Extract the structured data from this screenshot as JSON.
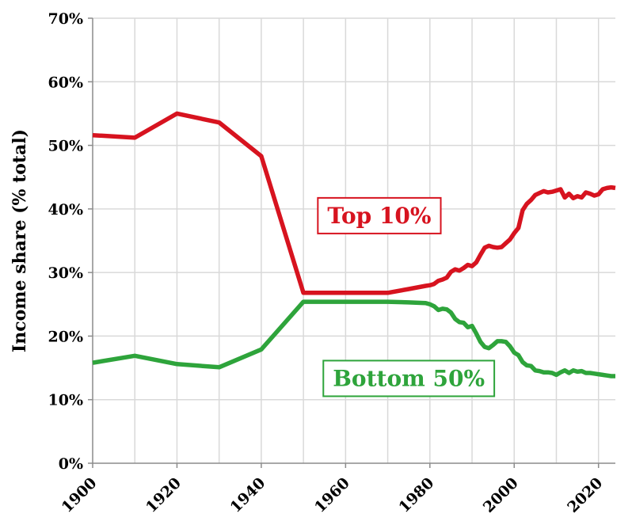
{
  "chart_data": {
    "type": "line",
    "title": "",
    "xlabel": "",
    "ylabel": "Income share (% total)",
    "xlim": [
      1900,
      2024
    ],
    "ylim": [
      0,
      70
    ],
    "x_ticks": [
      "1900",
      "1920",
      "1940",
      "1960",
      "1980",
      "2000",
      "2020"
    ],
    "y_ticks": [
      "0%",
      "10%",
      "20%",
      "30%",
      "40%",
      "50%",
      "60%",
      "70%"
    ],
    "grid": true,
    "legend": "inline labels",
    "series": [
      {
        "name": "Top 10%",
        "color": "#d7131f",
        "points": [
          [
            1900,
            51.6
          ],
          [
            1910,
            51.2
          ],
          [
            1920,
            55.0
          ],
          [
            1930,
            53.6
          ],
          [
            1940,
            48.3
          ],
          [
            1950,
            26.8
          ],
          [
            1960,
            26.8
          ],
          [
            1970,
            26.8
          ],
          [
            1975,
            27.4
          ],
          [
            1979,
            27.9
          ],
          [
            1980,
            28.0
          ],
          [
            1981,
            28.2
          ],
          [
            1982,
            28.7
          ],
          [
            1983,
            28.9
          ],
          [
            1984,
            29.2
          ],
          [
            1985,
            30.1
          ],
          [
            1986,
            30.5
          ],
          [
            1987,
            30.3
          ],
          [
            1988,
            30.7
          ],
          [
            1989,
            31.2
          ],
          [
            1990,
            31.0
          ],
          [
            1991,
            31.6
          ],
          [
            1992,
            32.8
          ],
          [
            1993,
            33.9
          ],
          [
            1994,
            34.2
          ],
          [
            1995,
            34.0
          ],
          [
            1996,
            33.9
          ],
          [
            1997,
            34.0
          ],
          [
            1998,
            34.6
          ],
          [
            1999,
            35.2
          ],
          [
            2000,
            36.2
          ],
          [
            2001,
            37.0
          ],
          [
            2002,
            39.8
          ],
          [
            2003,
            40.8
          ],
          [
            2004,
            41.4
          ],
          [
            2005,
            42.2
          ],
          [
            2006,
            42.5
          ],
          [
            2007,
            42.8
          ],
          [
            2008,
            42.6
          ],
          [
            2009,
            42.7
          ],
          [
            2010,
            42.9
          ],
          [
            2011,
            43.1
          ],
          [
            2012,
            41.8
          ],
          [
            2013,
            42.4
          ],
          [
            2014,
            41.7
          ],
          [
            2015,
            42.0
          ],
          [
            2016,
            41.8
          ],
          [
            2017,
            42.6
          ],
          [
            2018,
            42.4
          ],
          [
            2019,
            42.1
          ],
          [
            2020,
            42.3
          ],
          [
            2021,
            43.1
          ],
          [
            2022,
            43.3
          ],
          [
            2023,
            43.4
          ],
          [
            2024,
            43.3
          ]
        ]
      },
      {
        "name": "Bottom 50%",
        "color": "#2ea43b",
        "points": [
          [
            1900,
            15.8
          ],
          [
            1910,
            16.9
          ],
          [
            1920,
            15.6
          ],
          [
            1930,
            15.1
          ],
          [
            1940,
            17.9
          ],
          [
            1950,
            25.4
          ],
          [
            1960,
            25.4
          ],
          [
            1970,
            25.4
          ],
          [
            1975,
            25.3
          ],
          [
            1979,
            25.2
          ],
          [
            1980,
            25.0
          ],
          [
            1981,
            24.7
          ],
          [
            1982,
            24.1
          ],
          [
            1983,
            24.3
          ],
          [
            1984,
            24.2
          ],
          [
            1985,
            23.7
          ],
          [
            1986,
            22.7
          ],
          [
            1987,
            22.2
          ],
          [
            1988,
            22.1
          ],
          [
            1989,
            21.4
          ],
          [
            1990,
            21.6
          ],
          [
            1991,
            20.4
          ],
          [
            1992,
            19.1
          ],
          [
            1993,
            18.3
          ],
          [
            1994,
            18.1
          ],
          [
            1995,
            18.6
          ],
          [
            1996,
            19.2
          ],
          [
            1997,
            19.2
          ],
          [
            1998,
            19.1
          ],
          [
            1999,
            18.4
          ],
          [
            2000,
            17.4
          ],
          [
            2001,
            17.0
          ],
          [
            2002,
            15.9
          ],
          [
            2003,
            15.4
          ],
          [
            2004,
            15.3
          ],
          [
            2005,
            14.6
          ],
          [
            2006,
            14.5
          ],
          [
            2007,
            14.3
          ],
          [
            2008,
            14.3
          ],
          [
            2009,
            14.2
          ],
          [
            2010,
            13.9
          ],
          [
            2011,
            14.3
          ],
          [
            2012,
            14.6
          ],
          [
            2013,
            14.2
          ],
          [
            2014,
            14.6
          ],
          [
            2015,
            14.4
          ],
          [
            2016,
            14.5
          ],
          [
            2017,
            14.2
          ],
          [
            2018,
            14.2
          ],
          [
            2019,
            14.1
          ],
          [
            2020,
            14.0
          ],
          [
            2021,
            13.9
          ],
          [
            2022,
            13.8
          ],
          [
            2023,
            13.7
          ],
          [
            2024,
            13.7
          ]
        ]
      }
    ],
    "labels": [
      {
        "series": "Top 10%",
        "text": "Top 10%",
        "x": 1968,
        "y": 39.0
      },
      {
        "series": "Bottom 50%",
        "text": "Bottom 50%",
        "x": 1975,
        "y": 13.4
      }
    ]
  }
}
